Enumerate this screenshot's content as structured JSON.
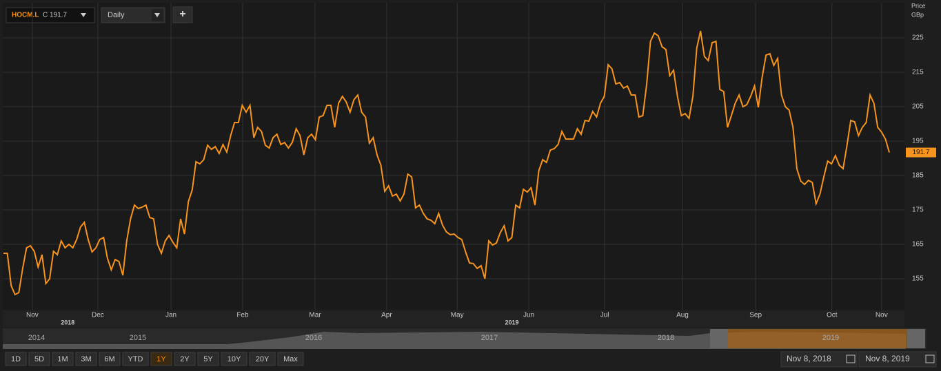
{
  "toolbar": {
    "symbol": "HOCM.L",
    "close_label": "C 191.7",
    "interval": "Daily",
    "add": "+"
  },
  "chart_data": {
    "type": "line",
    "y_axis_title": [
      "Price",
      "GBp"
    ],
    "color": "#f7941d",
    "values": [
      162.4,
      162.4,
      153,
      150.4,
      151,
      158,
      164,
      164.6,
      163,
      158.4,
      162,
      153.6,
      155,
      163,
      162,
      166,
      164,
      165,
      164,
      166.4,
      170,
      171.4,
      166.4,
      162.8,
      164,
      166.4,
      167,
      161,
      157.6,
      160.6,
      160,
      156,
      166,
      172.4,
      176.4,
      175.4,
      175.8,
      176.4,
      172.8,
      172.4,
      165,
      162.4,
      166,
      167.6,
      165.6,
      164,
      172.4,
      168,
      177.4,
      180.8,
      189,
      188.4,
      189.6,
      193.8,
      192.6,
      193.4,
      191.4,
      194,
      191.8,
      196.6,
      200.4,
      200.4,
      205.4,
      203.4,
      205.4,
      196,
      199,
      197.8,
      193.8,
      193,
      196,
      197,
      194,
      194.6,
      193,
      194.6,
      198.6,
      196.6,
      191,
      196,
      197,
      195.4,
      202,
      202.4,
      205.4,
      205.4,
      199,
      206,
      208,
      206.4,
      203.4,
      207,
      208.4,
      203.4,
      202,
      194.4,
      196,
      191,
      188,
      180.4,
      182,
      179,
      179.6,
      177.6,
      179.6,
      185.4,
      184.6,
      175.6,
      176.4,
      174,
      172.4,
      172,
      171,
      174,
      170.6,
      168.6,
      167.8,
      168,
      167,
      166.4,
      162.8,
      159.6,
      159.4,
      158,
      158.8,
      155,
      166,
      164.8,
      165.4,
      168.4,
      170.4,
      166,
      167,
      176.4,
      175.6,
      181,
      180.2,
      181.4,
      176.4,
      186.4,
      189.6,
      188.8,
      192.4,
      192.8,
      194,
      197.8,
      195.6,
      195.6,
      195.6,
      198.6,
      197,
      201,
      200.8,
      203.6,
      202,
      206,
      208,
      217.2,
      216,
      211.6,
      212,
      210.4,
      211,
      208.4,
      208.4,
      202,
      202.4,
      211.4,
      224,
      226.4,
      225.6,
      222.4,
      221.6,
      214,
      215.6,
      208,
      202.4,
      203,
      201.6,
      208,
      222,
      227,
      219.6,
      218.4,
      223.6,
      224,
      210,
      209.4,
      199,
      202.4,
      206,
      208.4,
      205,
      205.6,
      208,
      211,
      204.8,
      213.6,
      220,
      220.4,
      217,
      219,
      208.4,
      205,
      204,
      199,
      187,
      183.4,
      182.4,
      183.6,
      183,
      176.8,
      179.6,
      184.6,
      189.2,
      188.4,
      190.8,
      188,
      187,
      193.6,
      201,
      200.6,
      196.6,
      199,
      200.4,
      208.4,
      206,
      199,
      197.6,
      195.6,
      191.7
    ],
    "xlim": [
      0,
      230
    ],
    "ylim": [
      146,
      235
    ],
    "yticks": [
      155,
      165,
      175,
      185,
      195,
      205,
      215,
      225
    ],
    "xticks": [
      {
        "value": 7.5,
        "label": "Nov"
      },
      {
        "value": 24.5,
        "label": "Dec"
      },
      {
        "value": 43.5,
        "label": "Jan"
      },
      {
        "value": 62.1,
        "label": "Feb"
      },
      {
        "value": 80.9,
        "label": "Mar"
      },
      {
        "value": 99.5,
        "label": "Apr"
      },
      {
        "value": 117.8,
        "label": "May"
      },
      {
        "value": 136.4,
        "label": "Jun"
      },
      {
        "value": 156.1,
        "label": "Jul"
      },
      {
        "value": 176.3,
        "label": "Aug"
      },
      {
        "value": 195.3,
        "label": "Sep"
      },
      {
        "value": 215.1,
        "label": "Oct"
      },
      {
        "value": 228,
        "label": "Nov"
      }
    ],
    "year_labels": [
      {
        "value": 16.7,
        "label": "2018"
      },
      {
        "value": 132,
        "label": "2019"
      }
    ],
    "grid": true
  },
  "navigator": {
    "years": [
      "2014",
      "2015",
      "2016",
      "2017",
      "2018",
      "2019"
    ]
  },
  "range_buttons": [
    "1D",
    "5D",
    "1M",
    "3M",
    "6M",
    "YTD",
    "1Y",
    "2Y",
    "5Y",
    "10Y",
    "20Y",
    "Max"
  ],
  "selected_range": "1Y",
  "date_from": "Nov 8, 2018",
  "date_to": "Nov 8, 2019"
}
